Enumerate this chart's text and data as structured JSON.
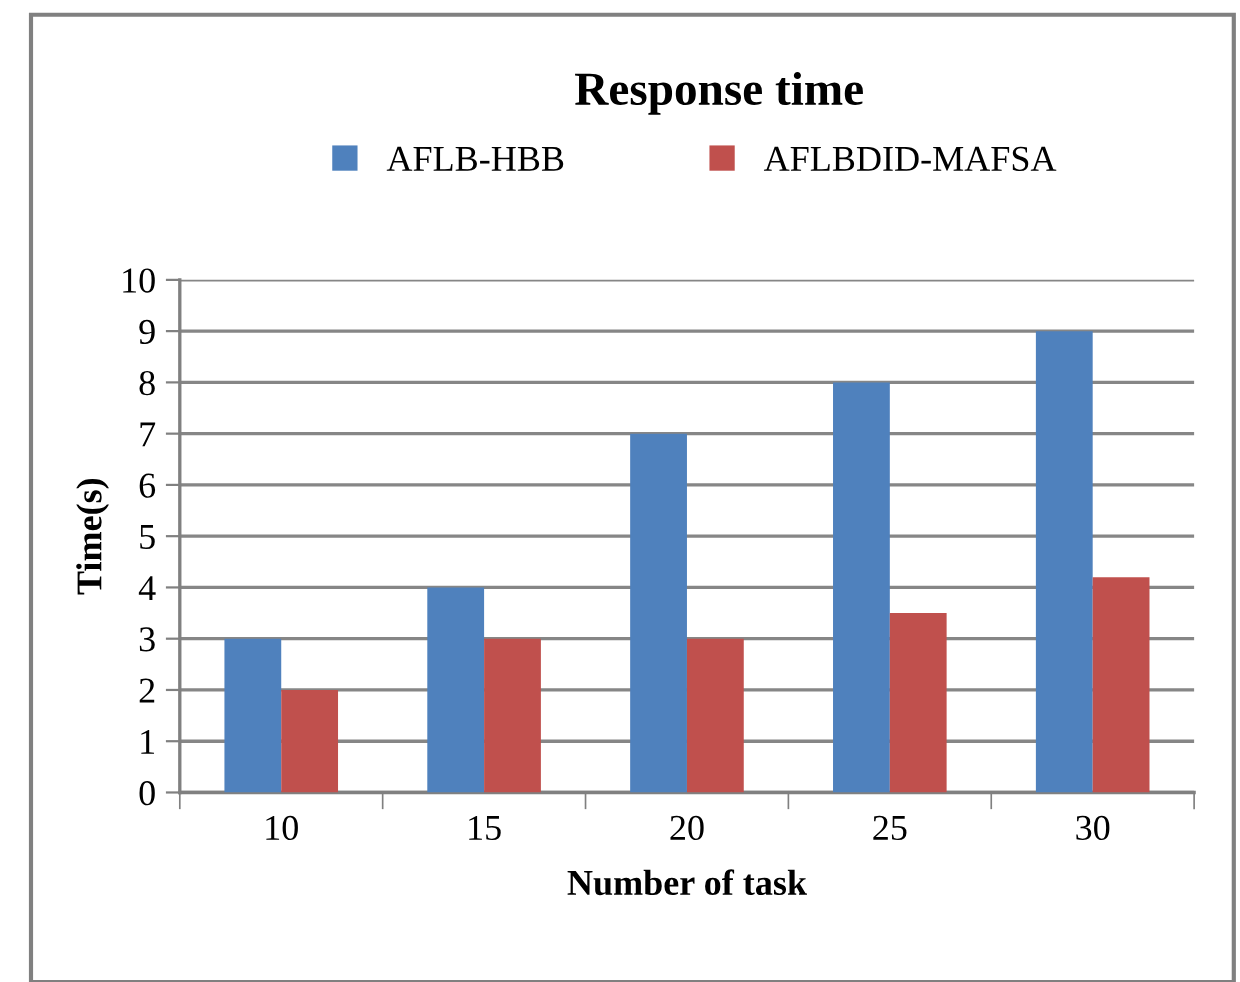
{
  "chart_data": {
    "type": "bar",
    "title": "Response time",
    "xlabel": "Number of task",
    "ylabel": "Time(s)",
    "categories": [
      "10",
      "15",
      "20",
      "25",
      "30"
    ],
    "series": [
      {
        "name": "AFLB-HBB",
        "color": "#4f81bd",
        "values": [
          3,
          4,
          7,
          8,
          9
        ]
      },
      {
        "name": "AFLBDID-MAFSA",
        "color": "#c0504d",
        "values": [
          2,
          3,
          3,
          3.5,
          4.2
        ]
      }
    ],
    "ylim": [
      0,
      10
    ],
    "yticks": [
      0,
      1,
      2,
      3,
      4,
      5,
      6,
      7,
      8,
      9,
      10
    ],
    "grid": "y",
    "legend": "top"
  }
}
